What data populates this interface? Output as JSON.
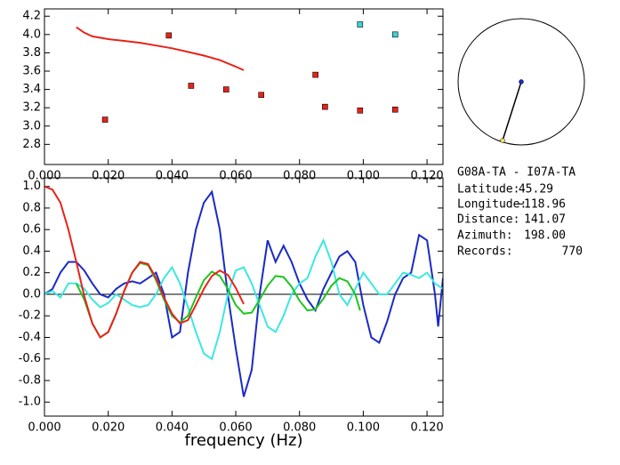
{
  "chart_data": [
    {
      "type": "scatter",
      "xlim": [
        0,
        0.125
      ],
      "ylim": [
        2.58,
        4.28
      ],
      "xticks": [
        {
          "value": 0,
          "label": "0.000"
        },
        {
          "value": 0.02,
          "label": "0.020"
        },
        {
          "value": 0.04,
          "label": "0.040"
        },
        {
          "value": 0.06,
          "label": "0.060"
        },
        {
          "value": 0.08,
          "label": "0.080"
        },
        {
          "value": 0.1,
          "label": "0.100"
        },
        {
          "value": 0.12,
          "label": "0.120"
        }
      ],
      "yticks": [
        {
          "value": 2.8,
          "label": "2.8"
        },
        {
          "value": 3.0,
          "label": "3.0"
        },
        {
          "value": 3.2,
          "label": "3.2"
        },
        {
          "value": 3.4,
          "label": "3.4"
        },
        {
          "value": 3.6,
          "label": "3.6"
        },
        {
          "value": 3.8,
          "label": "3.8"
        },
        {
          "value": 4.0,
          "label": "4.0"
        },
        {
          "value": 4.2,
          "label": "4.2"
        }
      ],
      "series": [
        {
          "mode": "line",
          "color": "#e8231a",
          "x": [
            0.01,
            0.0125,
            0.015,
            0.02,
            0.025,
            0.03,
            0.035,
            0.04,
            0.045,
            0.05,
            0.055,
            0.06,
            0.0625
          ],
          "values": [
            4.08,
            4.02,
            3.98,
            3.95,
            3.93,
            3.91,
            3.88,
            3.85,
            3.81,
            3.77,
            3.72,
            3.65,
            3.61
          ]
        },
        {
          "mode": "marker",
          "color": "#e8231a",
          "x": [
            0.019,
            0.039,
            0.046,
            0.057,
            0.068,
            0.085,
            0.088,
            0.099,
            0.11
          ],
          "values": [
            3.07,
            3.99,
            3.44,
            3.4,
            3.34,
            3.56,
            3.21,
            3.17,
            3.18
          ]
        },
        {
          "mode": "marker",
          "color": "#3cd4d4",
          "x": [
            0.099,
            0.11
          ],
          "values": [
            4.11,
            4.0
          ]
        }
      ]
    },
    {
      "type": "line",
      "x_label": "frequency (Hz)",
      "xlim": [
        0,
        0.125
      ],
      "ylim": [
        -1.13,
        1.08
      ],
      "hlines": [
        0
      ],
      "xticks": [
        {
          "value": 0,
          "label": "0.000"
        },
        {
          "value": 0.02,
          "label": "0.020"
        },
        {
          "value": 0.04,
          "label": "0.040"
        },
        {
          "value": 0.06,
          "label": "0.060"
        },
        {
          "value": 0.08,
          "label": "0.080"
        },
        {
          "value": 0.1,
          "label": "0.100"
        },
        {
          "value": 0.12,
          "label": "0.120"
        }
      ],
      "yticks": [
        {
          "value": -1.0,
          "label": "-1.0"
        },
        {
          "value": -0.8,
          "label": "-0.8"
        },
        {
          "value": -0.6,
          "label": "-0.6"
        },
        {
          "value": -0.4,
          "label": "-0.4"
        },
        {
          "value": -0.2,
          "label": "-0.2"
        },
        {
          "value": 0.0,
          "label": "0.0"
        },
        {
          "value": 0.2,
          "label": "0.2"
        },
        {
          "value": 0.4,
          "label": "0.4"
        },
        {
          "value": 0.6,
          "label": "0.6"
        },
        {
          "value": 0.8,
          "label": "0.8"
        },
        {
          "value": 1.0,
          "label": "1.0"
        }
      ],
      "series": [
        {
          "color": "#1a2bc4",
          "x": [
            0,
            0.0025,
            0.005,
            0.0075,
            0.01,
            0.0125,
            0.015,
            0.0175,
            0.02,
            0.0225,
            0.025,
            0.0275,
            0.03,
            0.0325,
            0.035,
            0.0375,
            0.04,
            0.0425,
            0.045,
            0.0475,
            0.05,
            0.0525,
            0.055,
            0.0575,
            0.06,
            0.0625,
            0.065,
            0.0675,
            0.07,
            0.0725,
            0.075,
            0.0775,
            0.08,
            0.0825,
            0.085,
            0.0875,
            0.09,
            0.0925,
            0.095,
            0.0975,
            0.1,
            0.1025,
            0.105,
            0.1075,
            0.11,
            0.1125,
            0.115,
            0.1175,
            0.12,
            0.1225,
            0.1235,
            0.125
          ],
          "values": [
            0.0,
            0.05,
            0.2,
            0.3,
            0.3,
            0.22,
            0.1,
            0.0,
            -0.03,
            0.05,
            0.1,
            0.12,
            0.1,
            0.15,
            0.2,
            0.0,
            -0.4,
            -0.35,
            0.2,
            0.6,
            0.85,
            0.95,
            0.6,
            0.0,
            -0.5,
            -0.95,
            -0.7,
            0.0,
            0.5,
            0.3,
            0.45,
            0.3,
            0.1,
            -0.05,
            -0.15,
            0.05,
            0.2,
            0.35,
            0.4,
            0.3,
            -0.1,
            -0.4,
            -0.45,
            -0.25,
            0.0,
            0.15,
            0.2,
            0.55,
            0.5,
            0.0,
            -0.3,
            0.15
          ]
        },
        {
          "color": "#3ce8e0",
          "x": [
            0,
            0.0025,
            0.005,
            0.0075,
            0.01,
            0.0125,
            0.015,
            0.0175,
            0.02,
            0.0225,
            0.025,
            0.0275,
            0.03,
            0.0325,
            0.035,
            0.0375,
            0.04,
            0.0425,
            0.045,
            0.0475,
            0.05,
            0.0525,
            0.055,
            0.0575,
            0.06,
            0.0625,
            0.065,
            0.0675,
            0.07,
            0.0725,
            0.075,
            0.0775,
            0.08,
            0.0825,
            0.085,
            0.0875,
            0.09,
            0.0925,
            0.095,
            0.0975,
            0.1,
            0.1025,
            0.105,
            0.1075,
            0.11,
            0.1125,
            0.115,
            0.1175,
            0.12,
            0.1225,
            0.125
          ],
          "values": [
            0.0,
            0.03,
            -0.03,
            0.1,
            0.1,
            0.05,
            -0.05,
            -0.12,
            -0.08,
            0.0,
            -0.05,
            -0.1,
            -0.12,
            -0.1,
            0.0,
            0.15,
            0.25,
            0.1,
            -0.12,
            -0.35,
            -0.55,
            -0.6,
            -0.35,
            0.0,
            0.22,
            0.25,
            0.1,
            -0.1,
            -0.3,
            -0.35,
            -0.2,
            0.0,
            0.1,
            0.15,
            0.35,
            0.5,
            0.3,
            0.0,
            -0.1,
            0.05,
            0.2,
            0.1,
            0.0,
            0.0,
            0.1,
            0.2,
            0.18,
            0.15,
            0.2,
            0.1,
            0.05
          ]
        },
        {
          "color": "#1fc41f",
          "x": [
            0.01,
            0.0125,
            0.015,
            0.0175,
            0.02,
            0.0225,
            0.025,
            0.0275,
            0.03,
            0.0325,
            0.035,
            0.0375,
            0.04,
            0.0425,
            0.045,
            0.0475,
            0.05,
            0.0525,
            0.055,
            0.0575,
            0.06,
            0.0625,
            0.065,
            0.0675,
            0.07,
            0.0725,
            0.075,
            0.0775,
            0.08,
            0.0825,
            0.085,
            0.0875,
            0.09,
            0.0925,
            0.095,
            0.0975,
            0.099
          ],
          "values": [
            0.1,
            -0.05,
            -0.27,
            -0.4,
            -0.35,
            -0.18,
            0.03,
            0.2,
            0.29,
            0.27,
            0.13,
            -0.05,
            -0.2,
            -0.26,
            -0.2,
            -0.03,
            0.13,
            0.21,
            0.17,
            0.05,
            -0.1,
            -0.18,
            -0.17,
            -0.05,
            0.08,
            0.17,
            0.16,
            0.07,
            -0.06,
            -0.15,
            -0.14,
            -0.04,
            0.08,
            0.15,
            0.12,
            0.0,
            -0.15
          ]
        },
        {
          "color": "#e8231a",
          "x": [
            0,
            0.0025,
            0.005,
            0.0075,
            0.01,
            0.0125,
            0.015,
            0.0175,
            0.02,
            0.0225,
            0.025,
            0.0275,
            0.03,
            0.0325,
            0.035,
            0.0375,
            0.04,
            0.0425,
            0.045,
            0.0475,
            0.05,
            0.0525,
            0.055,
            0.0575,
            0.06,
            0.0625
          ],
          "values": [
            1.0,
            0.97,
            0.85,
            0.6,
            0.3,
            -0.02,
            -0.27,
            -0.4,
            -0.35,
            -0.18,
            0.03,
            0.2,
            0.3,
            0.28,
            0.15,
            -0.03,
            -0.18,
            -0.27,
            -0.24,
            -0.1,
            0.05,
            0.17,
            0.22,
            0.18,
            0.06,
            -0.09
          ]
        }
      ]
    }
  ],
  "info": {
    "title": "G08A-TA  -  I07A-TA",
    "rows": [
      {
        "label": "Latitude:",
        "value": "45.29"
      },
      {
        "label": "Longitude:",
        "value": "−118.96"
      },
      {
        "label": "Distance:",
        "value": "141.07"
      },
      {
        "label": "Azimuth:",
        "value": "198.00"
      },
      {
        "label": "Records:",
        "value": "770"
      }
    ]
  }
}
